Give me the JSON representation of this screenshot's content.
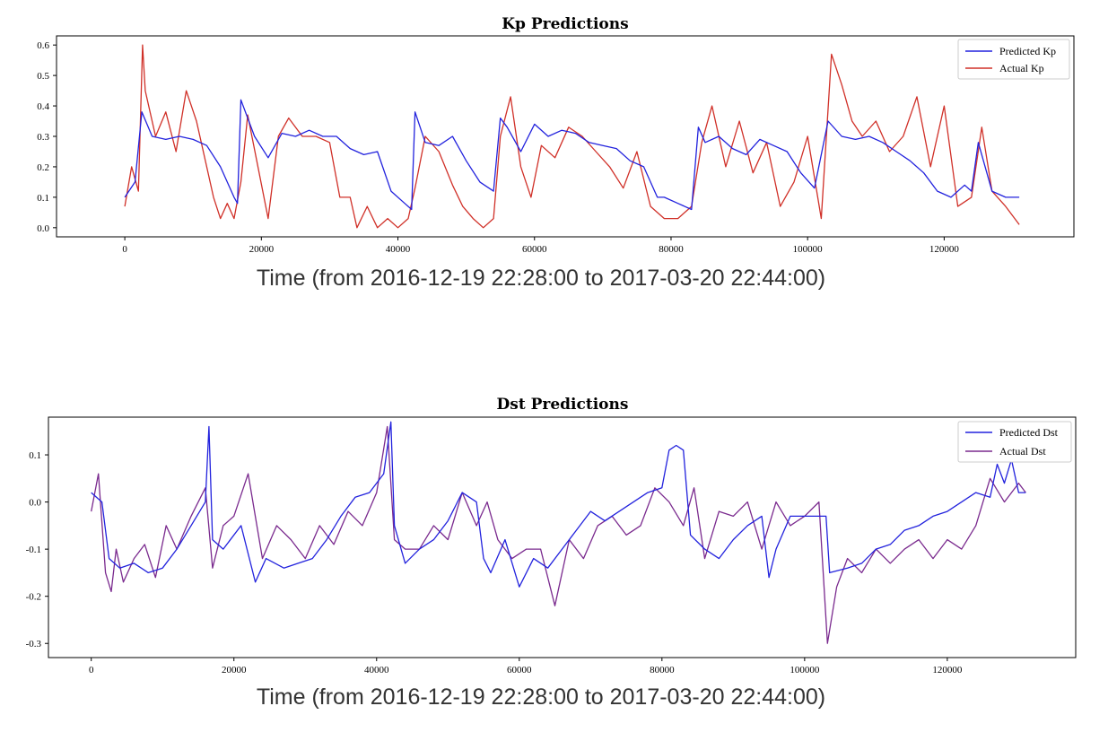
{
  "chart_data": [
    {
      "type": "line",
      "title": "Kp Predictions",
      "xlabel": "Time (from 2016-12-19 22:28:00 to 2017-03-20 22:44:00)",
      "ylabel": "",
      "xlim": [
        -10000,
        139000
      ],
      "ylim": [
        -0.03,
        0.63
      ],
      "xticks": [
        0,
        20000,
        40000,
        60000,
        80000,
        100000,
        120000
      ],
      "xtick_labels": [
        "0",
        "20000",
        "40000",
        "60000",
        "80000",
        "100000",
        "120000"
      ],
      "yticks": [
        0.0,
        0.1,
        0.2,
        0.3,
        0.4,
        0.5,
        0.6
      ],
      "ytick_labels": [
        "0.0",
        "0.1",
        "0.2",
        "0.3",
        "0.4",
        "0.5",
        "0.6"
      ],
      "legend_position": "top-right",
      "series": [
        {
          "name": "Predicted Kp",
          "color": "#2222dd",
          "x": [
            0,
            1500,
            2500,
            4000,
            6000,
            8000,
            10000,
            12000,
            14000,
            16000,
            16500,
            17000,
            19000,
            21000,
            23000,
            25000,
            27000,
            29000,
            31000,
            33000,
            35000,
            37000,
            39000,
            41000,
            42000,
            42500,
            44000,
            46000,
            48000,
            50000,
            52000,
            54000,
            55000,
            56000,
            58000,
            60000,
            62000,
            64000,
            66000,
            68000,
            70000,
            72000,
            74000,
            76000,
            78000,
            79000,
            81000,
            83000,
            84000,
            85000,
            87000,
            89000,
            91000,
            93000,
            95000,
            97000,
            99000,
            101000,
            103000,
            105000,
            107000,
            109000,
            111000,
            113000,
            115000,
            117000,
            119000,
            121000,
            123000,
            124000,
            125000,
            127000,
            129000,
            131000
          ],
          "values": [
            0.1,
            0.15,
            0.38,
            0.3,
            0.29,
            0.3,
            0.29,
            0.27,
            0.2,
            0.1,
            0.08,
            0.42,
            0.3,
            0.23,
            0.31,
            0.3,
            0.32,
            0.3,
            0.3,
            0.26,
            0.24,
            0.25,
            0.12,
            0.08,
            0.06,
            0.38,
            0.28,
            0.27,
            0.3,
            0.22,
            0.15,
            0.12,
            0.36,
            0.33,
            0.25,
            0.34,
            0.3,
            0.32,
            0.31,
            0.28,
            0.27,
            0.26,
            0.22,
            0.2,
            0.1,
            0.1,
            0.08,
            0.06,
            0.33,
            0.28,
            0.3,
            0.26,
            0.24,
            0.29,
            0.27,
            0.25,
            0.18,
            0.13,
            0.35,
            0.3,
            0.29,
            0.3,
            0.28,
            0.25,
            0.22,
            0.18,
            0.12,
            0.1,
            0.14,
            0.12,
            0.28,
            0.12,
            0.1,
            0.1
          ]
        },
        {
          "name": "Actual Kp",
          "color": "#d03028",
          "x": [
            0,
            1000,
            2000,
            2600,
            3000,
            4500,
            6000,
            7500,
            9000,
            10500,
            12000,
            13000,
            14000,
            15000,
            16000,
            17000,
            18000,
            19500,
            21000,
            22500,
            24000,
            26000,
            28000,
            30000,
            31500,
            33000,
            34000,
            35500,
            37000,
            38500,
            40000,
            41500,
            42500,
            44000,
            46000,
            48000,
            49500,
            51000,
            52500,
            54000,
            55000,
            56500,
            58000,
            59500,
            61000,
            63000,
            65000,
            67000,
            69000,
            71000,
            73000,
            75000,
            77000,
            79000,
            81000,
            83000,
            84500,
            86000,
            88000,
            90000,
            92000,
            94000,
            96000,
            98000,
            100000,
            102000,
            103500,
            105000,
            106500,
            108000,
            110000,
            112000,
            114000,
            116000,
            118000,
            120000,
            122000,
            124000,
            125500,
            127000,
            129000,
            131000
          ],
          "values": [
            0.07,
            0.2,
            0.12,
            0.6,
            0.45,
            0.3,
            0.38,
            0.25,
            0.45,
            0.35,
            0.2,
            0.1,
            0.03,
            0.08,
            0.03,
            0.15,
            0.37,
            0.2,
            0.03,
            0.3,
            0.36,
            0.3,
            0.3,
            0.28,
            0.1,
            0.1,
            0.0,
            0.07,
            0.0,
            0.03,
            0.0,
            0.03,
            0.13,
            0.3,
            0.25,
            0.14,
            0.07,
            0.03,
            0.0,
            0.03,
            0.3,
            0.43,
            0.2,
            0.1,
            0.27,
            0.23,
            0.33,
            0.3,
            0.25,
            0.2,
            0.13,
            0.25,
            0.07,
            0.03,
            0.03,
            0.07,
            0.28,
            0.4,
            0.2,
            0.35,
            0.18,
            0.28,
            0.07,
            0.15,
            0.3,
            0.03,
            0.57,
            0.47,
            0.35,
            0.3,
            0.35,
            0.25,
            0.3,
            0.43,
            0.2,
            0.4,
            0.07,
            0.1,
            0.33,
            0.12,
            0.07,
            0.01
          ]
        }
      ]
    },
    {
      "type": "line",
      "title": "Dst Predictions",
      "xlabel": "Time (from 2016-12-19 22:28:00 to 2017-03-20 22:44:00)",
      "ylabel": "",
      "xlim": [
        -6000,
        138000
      ],
      "ylim": [
        -0.33,
        0.18
      ],
      "xticks": [
        0,
        20000,
        40000,
        60000,
        80000,
        100000,
        120000
      ],
      "xtick_labels": [
        "0",
        "20000",
        "40000",
        "60000",
        "80000",
        "100000",
        "120000"
      ],
      "yticks": [
        0.1,
        0.0,
        -0.1,
        -0.2,
        -0.3
      ],
      "ytick_labels": [
        "0.1",
        "0.0",
        "-0.1",
        "-0.2",
        "-0.3"
      ],
      "legend_position": "top-right",
      "series": [
        {
          "name": "Predicted Dst",
          "color": "#2222dd",
          "x": [
            0,
            1500,
            2500,
            4000,
            6000,
            8000,
            10000,
            12000,
            14000,
            16000,
            16500,
            17000,
            18500,
            21000,
            23000,
            24500,
            27000,
            29000,
            31000,
            33000,
            35000,
            37000,
            39000,
            41000,
            42000,
            42500,
            44000,
            46000,
            48000,
            50000,
            52000,
            54000,
            55000,
            56000,
            58000,
            60000,
            62000,
            64000,
            66000,
            68000,
            70000,
            72000,
            74000,
            76000,
            78000,
            80000,
            81000,
            82000,
            83000,
            84000,
            86000,
            88000,
            90000,
            92000,
            94000,
            95000,
            96000,
            98000,
            100000,
            102000,
            103000,
            103500,
            106000,
            108000,
            110000,
            112000,
            114000,
            116000,
            118000,
            120000,
            122000,
            124000,
            126000,
            127000,
            128000,
            129000,
            130000,
            131000
          ],
          "values": [
            0.02,
            0.0,
            -0.12,
            -0.14,
            -0.13,
            -0.15,
            -0.14,
            -0.1,
            -0.05,
            0.0,
            0.16,
            -0.08,
            -0.1,
            -0.05,
            -0.17,
            -0.12,
            -0.14,
            -0.13,
            -0.12,
            -0.08,
            -0.03,
            0.01,
            0.02,
            0.06,
            0.17,
            -0.05,
            -0.13,
            -0.1,
            -0.08,
            -0.04,
            0.02,
            0.0,
            -0.12,
            -0.15,
            -0.08,
            -0.18,
            -0.12,
            -0.14,
            -0.1,
            -0.06,
            -0.02,
            -0.04,
            -0.02,
            0.0,
            0.02,
            0.03,
            0.11,
            0.12,
            0.11,
            -0.07,
            -0.1,
            -0.12,
            -0.08,
            -0.05,
            -0.03,
            -0.16,
            -0.1,
            -0.03,
            -0.03,
            -0.03,
            -0.03,
            -0.15,
            -0.14,
            -0.13,
            -0.1,
            -0.09,
            -0.06,
            -0.05,
            -0.03,
            -0.02,
            0.0,
            0.02,
            0.01,
            0.08,
            0.04,
            0.09,
            0.02,
            0.02
          ]
        },
        {
          "name": "Actual Dst",
          "color": "#7a2a8e",
          "x": [
            0,
            1000,
            2000,
            2800,
            3500,
            4500,
            6000,
            7500,
            9000,
            10500,
            12000,
            14000,
            16000,
            17000,
            18500,
            20000,
            22000,
            24000,
            26000,
            28000,
            30000,
            32000,
            34000,
            36000,
            38000,
            40000,
            41500,
            42500,
            44000,
            46000,
            48000,
            50000,
            52000,
            54000,
            55500,
            57000,
            59000,
            61000,
            63000,
            65000,
            67000,
            69000,
            71000,
            73000,
            75000,
            77000,
            79000,
            81000,
            83000,
            84500,
            86000,
            88000,
            90000,
            92000,
            94000,
            96000,
            98000,
            100000,
            102000,
            103200,
            104500,
            106000,
            108000,
            110000,
            112000,
            114000,
            116000,
            118000,
            120000,
            122000,
            124000,
            126000,
            128000,
            130000,
            131000
          ],
          "values": [
            -0.02,
            0.06,
            -0.15,
            -0.19,
            -0.1,
            -0.17,
            -0.12,
            -0.09,
            -0.16,
            -0.05,
            -0.1,
            -0.03,
            0.03,
            -0.14,
            -0.05,
            -0.03,
            0.06,
            -0.12,
            -0.05,
            -0.08,
            -0.12,
            -0.05,
            -0.09,
            -0.02,
            -0.05,
            0.02,
            0.16,
            -0.08,
            -0.1,
            -0.1,
            -0.05,
            -0.08,
            0.02,
            -0.05,
            0.0,
            -0.08,
            -0.12,
            -0.1,
            -0.1,
            -0.22,
            -0.08,
            -0.12,
            -0.05,
            -0.03,
            -0.07,
            -0.05,
            0.03,
            0.0,
            -0.05,
            0.03,
            -0.12,
            -0.02,
            -0.03,
            0.0,
            -0.1,
            0.0,
            -0.05,
            -0.03,
            0.0,
            -0.3,
            -0.18,
            -0.12,
            -0.15,
            -0.1,
            -0.13,
            -0.1,
            -0.08,
            -0.12,
            -0.08,
            -0.1,
            -0.05,
            0.05,
            0.0,
            0.04,
            0.02
          ]
        }
      ]
    }
  ]
}
